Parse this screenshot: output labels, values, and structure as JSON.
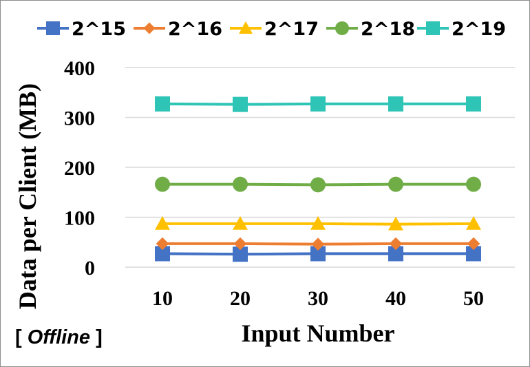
{
  "chart_data": {
    "type": "line",
    "xlabel": "Input Number",
    "ylabel": "Data per Client (MB)",
    "x": [
      10,
      20,
      30,
      40,
      50
    ],
    "ylim": [
      0,
      400
    ],
    "yticks": [
      0,
      100,
      200,
      300,
      400
    ],
    "grid": true,
    "legend_position": "top",
    "series": [
      {
        "name": "2^15",
        "values": [
          27,
          26,
          27,
          27,
          27
        ],
        "color": "#4472C4",
        "marker": "square"
      },
      {
        "name": "2^16",
        "values": [
          47,
          47,
          46,
          47,
          47
        ],
        "color": "#ED7D31",
        "marker": "diamond"
      },
      {
        "name": "2^17",
        "values": [
          87,
          87,
          87,
          86,
          87
        ],
        "color": "#FFC000",
        "marker": "triangle"
      },
      {
        "name": "2^18",
        "values": [
          166,
          166,
          165,
          166,
          166
        ],
        "color": "#70AD47",
        "marker": "circle"
      },
      {
        "name": "2^19",
        "values": [
          327,
          326,
          327,
          327,
          327
        ],
        "color": "#2EC4B6",
        "marker": "square"
      }
    ]
  },
  "note": {
    "open": "[ ",
    "emphasis": "Offline",
    "close": " ]"
  }
}
